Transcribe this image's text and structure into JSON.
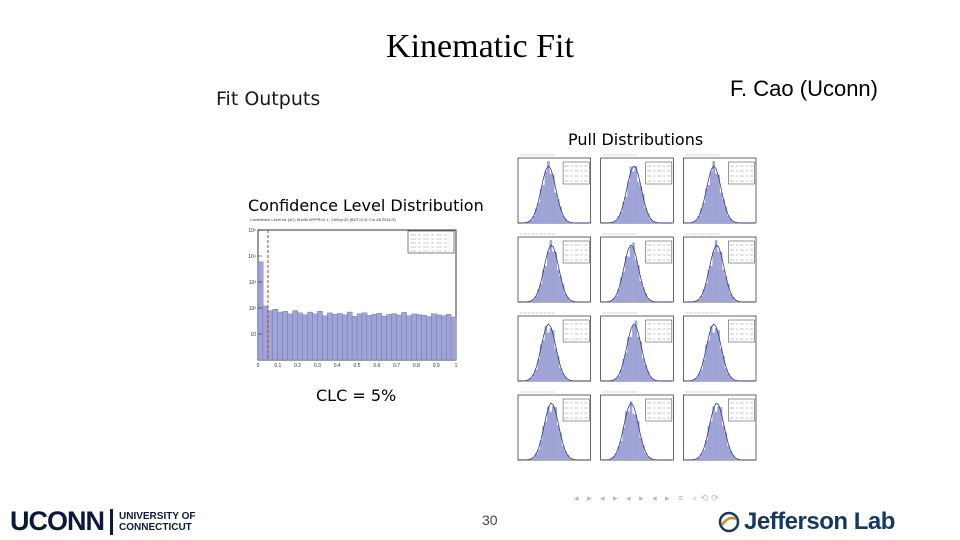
{
  "slide": {
    "title": "Kinematic Fit",
    "author": "F. Cao (Uconn)",
    "subtitle": "Fit Outputs",
    "page_number": "30"
  },
  "confidence_plot": {
    "title": "Confidence Level Distribution",
    "subtitle": "Confidence Level for (4C) fit with MPPR>0.1, ChiSq<20 (BDT>0.5, Cut #5 2016-9)",
    "clc_label": "CLC = 5%",
    "y_ticks": [
      "10⁵",
      "10⁴",
      "10³",
      "10²",
      "10"
    ],
    "x_ticks": [
      "0",
      "0.1",
      "0.2",
      "0.3",
      "0.4",
      "0.5",
      "0.6",
      "0.7",
      "0.8",
      "0.9",
      "1"
    ]
  },
  "pull_plot": {
    "title": "Pull Distributions"
  },
  "beamer_nav": "◂ ▸ ◂ ▸ ◂ ▸ ◂ ▸ ≡ ∘⟲⟳",
  "logos": {
    "uconn_main": "UCONN",
    "uconn_line1": "UNIVERSITY OF",
    "uconn_line2": "CONNECTICUT",
    "jlab": "Jefferson Lab"
  },
  "chart_data": [
    {
      "type": "bar",
      "title": "Confidence Level Distribution",
      "xlabel": "",
      "ylabel": "",
      "xlim": [
        0,
        1
      ],
      "y_scale": "log",
      "ylim": [
        1,
        100000
      ],
      "bin_values": [
        6000,
        120,
        80,
        90,
        70,
        75,
        60,
        80,
        65,
        55,
        70,
        60,
        75,
        50,
        65,
        58,
        62,
        55,
        70,
        48,
        60,
        66,
        52,
        58,
        63,
        49,
        57,
        61,
        54,
        68,
        50,
        59,
        56,
        53,
        47,
        60,
        55,
        51,
        58,
        45
      ],
      "cut_line": 0.05,
      "color": "#9fa3d6"
    },
    {
      "type": "bar",
      "title": "Pull Distributions",
      "panels": 12,
      "shape": "gaussian",
      "color": "#9fa3d6"
    }
  ]
}
